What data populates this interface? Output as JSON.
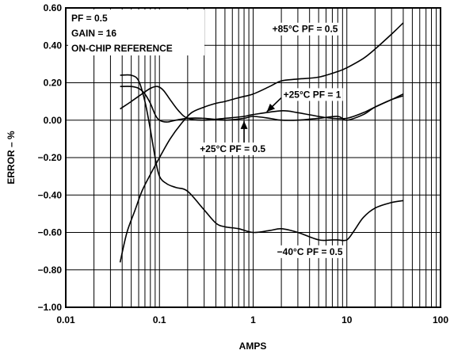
{
  "chart_data": {
    "type": "line",
    "xlabel": "AMPS",
    "ylabel": "ERROR – %",
    "x_scale": "log",
    "xlim": [
      0.01,
      100
    ],
    "ylim": [
      -1.0,
      0.6
    ],
    "x_ticks": [
      0.01,
      0.1,
      1,
      10,
      100
    ],
    "x_tick_labels": [
      "0.01",
      "0.1",
      "1",
      "10",
      "100"
    ],
    "y_ticks": [
      0.6,
      0.4,
      0.2,
      0.0,
      -0.2,
      -0.4,
      -0.6,
      -0.8,
      -1.0
    ],
    "y_tick_labels": [
      "0.60",
      "0.40",
      "0.20",
      "0.00",
      "−0.20",
      "−0.40",
      "−0.60",
      "−0.80",
      "−1.00"
    ],
    "grid": true,
    "legend_block": [
      "PF = 0.5",
      "GAIN = 16",
      "ON-CHIP REFERENCE"
    ],
    "series": [
      {
        "name": "+85°C PF = 0.5",
        "x": [
          0.038,
          0.045,
          0.055,
          0.065,
          0.08,
          0.1,
          0.13,
          0.17,
          0.22,
          0.3,
          0.4,
          0.5,
          0.7,
          1.0,
          1.5,
          2.0,
          3.0,
          5.0,
          8.0,
          10.0,
          15.0,
          20.0,
          30.0,
          40.0
        ],
        "y": [
          -0.76,
          -0.6,
          -0.48,
          -0.38,
          -0.29,
          -0.2,
          -0.1,
          -0.02,
          0.04,
          0.07,
          0.09,
          0.1,
          0.12,
          0.14,
          0.18,
          0.21,
          0.22,
          0.23,
          0.26,
          0.28,
          0.33,
          0.38,
          0.46,
          0.52
        ]
      },
      {
        "name": "+25°C PF = 1",
        "x": [
          0.038,
          0.05,
          0.065,
          0.08,
          0.095,
          0.11,
          0.13,
          0.16,
          0.2,
          0.3,
          0.5,
          0.8,
          1.0,
          2.0,
          3.0,
          5.0,
          7.0,
          10.0,
          15.0,
          20.0,
          30.0,
          40.0
        ],
        "y": [
          0.06,
          0.1,
          0.14,
          0.17,
          0.18,
          0.16,
          0.11,
          0.05,
          0.01,
          0.0,
          0.01,
          0.02,
          0.03,
          0.05,
          0.04,
          0.02,
          0.01,
          0.01,
          0.04,
          0.07,
          0.11,
          0.13
        ]
      },
      {
        "name": "+25°C PF = 0.5",
        "x": [
          0.038,
          0.05,
          0.06,
          0.07,
          0.08,
          0.09,
          0.1,
          0.12,
          0.15,
          0.2,
          0.3,
          0.5,
          0.8,
          1.0,
          1.5,
          2.0,
          3.0,
          5.0,
          8.0,
          10.0,
          15.0,
          20.0,
          30.0,
          40.0
        ],
        "y": [
          0.18,
          0.18,
          0.17,
          0.14,
          0.09,
          0.03,
          0.0,
          -0.01,
          0.0,
          0.01,
          0.01,
          0.0,
          0.01,
          0.02,
          0.01,
          0.0,
          0.0,
          0.01,
          0.02,
          0.0,
          0.03,
          0.07,
          0.11,
          0.14
        ]
      },
      {
        "name": "−40°C PF = 0.5",
        "x": [
          0.038,
          0.05,
          0.06,
          0.07,
          0.08,
          0.09,
          0.1,
          0.12,
          0.15,
          0.2,
          0.3,
          0.4,
          0.5,
          0.7,
          1.0,
          1.5,
          2.0,
          3.0,
          5.0,
          7.0,
          8.0,
          10.0,
          12.0,
          15.0,
          20.0,
          30.0,
          40.0
        ],
        "y": [
          0.24,
          0.24,
          0.21,
          0.1,
          -0.05,
          -0.2,
          -0.3,
          -0.34,
          -0.36,
          -0.38,
          -0.48,
          -0.55,
          -0.57,
          -0.58,
          -0.6,
          -0.59,
          -0.58,
          -0.6,
          -0.64,
          -0.64,
          -0.64,
          -0.64,
          -0.59,
          -0.52,
          -0.47,
          -0.44,
          -0.43
        ]
      }
    ],
    "annotations": [
      {
        "text": "+85°C PF = 0.5",
        "x": 1.6,
        "y": 0.47,
        "series": "+85°C PF = 0.5"
      },
      {
        "text": "+25°C PF = 1",
        "x": 2.1,
        "y": 0.12,
        "series": "+25°C PF = 1"
      },
      {
        "text": "+25°C PF = 0.5",
        "x": 0.27,
        "y": -0.17,
        "series": "+25°C PF = 0.5"
      },
      {
        "text": "−40°C PF = 0.5",
        "x": 1.8,
        "y": -0.72,
        "series": "−40°C PF = 0.5"
      }
    ]
  }
}
